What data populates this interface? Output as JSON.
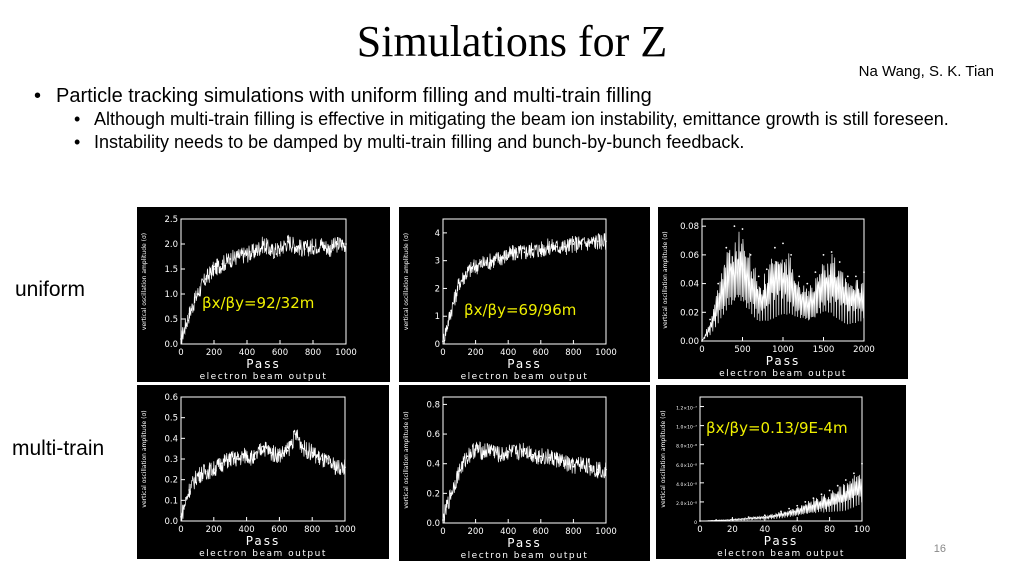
{
  "slide": {
    "title": "Simulations for Z",
    "authors": "Na Wang, S. K. Tian",
    "bullets": {
      "main": "Particle tracking simulations with uniform filling and multi-train filling",
      "sub1": "Although multi-train filling is effective in mitigating the beam ion instability, emittance growth is still foreseen.",
      "sub2": "Instability needs to be damped by multi-train filling and bunch-by-bunch feedback."
    },
    "row_labels": {
      "uniform": "uniform",
      "multi_train": "multi-train"
    },
    "page_number": "16",
    "colors": {
      "annotation": "#f0f000",
      "plot_bg": "#000000",
      "trace": "#ffffff"
    }
  },
  "chart_data": [
    {
      "id": "u1",
      "type": "line",
      "xlabel": "Pass",
      "ylabel": "vertical oscillation amplitude (σ)",
      "caption": "electron beam output",
      "xlim": [
        0,
        1000
      ],
      "ylim": [
        0,
        2.5
      ],
      "xticks": [
        0,
        200,
        400,
        600,
        800,
        1000
      ],
      "xtick_labels": [
        "0",
        "200",
        "400",
        "600",
        "800",
        "1000"
      ],
      "yticks": [
        0,
        0.5,
        1.0,
        1.5,
        2.0,
        2.5
      ],
      "ytick_labels": [
        "0.0",
        "0.5",
        "1.0",
        "1.5",
        "2.0",
        "2.5"
      ],
      "annotation": "βx/βy=92/32m",
      "series": [
        {
          "x": [
            0,
            50,
            100,
            150,
            200,
            250,
            300,
            350,
            400,
            450,
            500,
            550,
            600,
            650,
            700,
            750,
            800,
            850,
            900,
            950,
            1000
          ],
          "y": [
            0.1,
            0.6,
            1.0,
            1.3,
            1.5,
            1.6,
            1.7,
            1.75,
            1.8,
            1.85,
            2.0,
            1.85,
            1.9,
            2.05,
            1.95,
            1.9,
            1.95,
            2.0,
            1.9,
            2.0,
            2.0
          ]
        }
      ]
    },
    {
      "id": "u2",
      "type": "line",
      "xlabel": "Pass",
      "ylabel": "vertical oscillation amplitude (σ)",
      "caption": "electron beam output",
      "xlim": [
        0,
        1000
      ],
      "ylim": [
        0,
        4.5
      ],
      "xticks": [
        0,
        200,
        400,
        600,
        800,
        1000
      ],
      "xtick_labels": [
        "0",
        "200",
        "400",
        "600",
        "800",
        "1000"
      ],
      "yticks": [
        0,
        1,
        2,
        3,
        4
      ],
      "ytick_labels": [
        "0",
        "1",
        "2",
        "3",
        "4"
      ],
      "annotation": "βx/βy=69/96m",
      "series": [
        {
          "x": [
            0,
            50,
            100,
            150,
            200,
            250,
            300,
            350,
            400,
            450,
            500,
            550,
            600,
            650,
            700,
            750,
            800,
            850,
            900,
            950,
            1000
          ],
          "y": [
            0.1,
            1.2,
            2.2,
            2.6,
            2.8,
            2.9,
            3.0,
            3.1,
            3.2,
            3.3,
            3.3,
            3.4,
            3.4,
            3.5,
            3.5,
            3.5,
            3.6,
            3.6,
            3.65,
            3.7,
            3.7
          ]
        }
      ]
    },
    {
      "id": "u3",
      "type": "line",
      "xlabel": "Pass",
      "ylabel": "vertical oscillation amplitude (σ)",
      "caption": "electron beam output",
      "xlim": [
        0,
        2000
      ],
      "ylim": [
        0,
        0.085
      ],
      "xticks": [
        0,
        500,
        1000,
        1500,
        2000
      ],
      "xtick_labels": [
        "0",
        "500",
        "1000",
        "1500",
        "2000"
      ],
      "yticks": [
        0,
        0.02,
        0.04,
        0.06,
        0.08
      ],
      "ytick_labels": [
        "0.00",
        "0.02",
        "0.04",
        "0.06",
        "0.08"
      ],
      "annotation": "",
      "series": [
        {
          "x": [
            0,
            100,
            200,
            300,
            400,
            500,
            600,
            700,
            800,
            900,
            1000,
            1100,
            1200,
            1300,
            1400,
            1500,
            1600,
            1700,
            1800,
            1900,
            2000
          ],
          "y": [
            0.0,
            0.015,
            0.04,
            0.065,
            0.08,
            0.078,
            0.06,
            0.045,
            0.05,
            0.065,
            0.068,
            0.06,
            0.045,
            0.04,
            0.048,
            0.06,
            0.062,
            0.055,
            0.045,
            0.045,
            0.048
          ]
        }
      ]
    },
    {
      "id": "m1",
      "type": "line",
      "xlabel": "Pass",
      "ylabel": "vertical oscillation amplitude (σ)",
      "caption": "electron beam output",
      "xlim": [
        0,
        1000
      ],
      "ylim": [
        0,
        0.6
      ],
      "xticks": [
        0,
        200,
        400,
        600,
        800,
        1000
      ],
      "xtick_labels": [
        "0",
        "200",
        "400",
        "600",
        "800",
        "1000"
      ],
      "yticks": [
        0,
        0.1,
        0.2,
        0.3,
        0.4,
        0.5,
        0.6
      ],
      "ytick_labels": [
        "0.0",
        "0.1",
        "0.2",
        "0.3",
        "0.4",
        "0.5",
        "0.6"
      ],
      "annotation": "",
      "series": [
        {
          "x": [
            0,
            50,
            100,
            150,
            200,
            250,
            300,
            350,
            400,
            450,
            500,
            550,
            600,
            650,
            700,
            750,
            800,
            850,
            900,
            950,
            1000
          ],
          "y": [
            0.02,
            0.15,
            0.22,
            0.24,
            0.25,
            0.28,
            0.3,
            0.3,
            0.32,
            0.3,
            0.36,
            0.33,
            0.32,
            0.34,
            0.42,
            0.35,
            0.33,
            0.3,
            0.28,
            0.26,
            0.26
          ]
        }
      ]
    },
    {
      "id": "m2",
      "type": "line",
      "xlabel": "Pass",
      "ylabel": "vertical oscillation amplitude (σ)",
      "caption": "electron beam output",
      "xlim": [
        0,
        1000
      ],
      "ylim": [
        0,
        0.85
      ],
      "xticks": [
        0,
        200,
        400,
        600,
        800,
        1000
      ],
      "xtick_labels": [
        "0",
        "200",
        "400",
        "600",
        "800",
        "1000"
      ],
      "yticks": [
        0,
        0.2,
        0.4,
        0.6,
        0.8
      ],
      "ytick_labels": [
        "0.0",
        "0.2",
        "0.4",
        "0.6",
        "0.8"
      ],
      "annotation": "",
      "series": [
        {
          "x": [
            0,
            50,
            100,
            150,
            200,
            250,
            300,
            350,
            400,
            450,
            500,
            550,
            600,
            650,
            700,
            750,
            800,
            850,
            900,
            950,
            1000
          ],
          "y": [
            0.02,
            0.2,
            0.35,
            0.45,
            0.5,
            0.48,
            0.5,
            0.45,
            0.48,
            0.47,
            0.5,
            0.46,
            0.45,
            0.44,
            0.43,
            0.4,
            0.38,
            0.4,
            0.38,
            0.36,
            0.36
          ]
        }
      ]
    },
    {
      "id": "m3",
      "type": "line",
      "xlabel": "Pass",
      "ylabel": "vertical oscillation amplitude (σ)",
      "caption": "electron beam output",
      "xlim": [
        0,
        100
      ],
      "ylim": [
        0,
        1.3e-07
      ],
      "xticks": [
        0,
        20,
        40,
        60,
        80,
        100
      ],
      "xtick_labels": [
        "0",
        "20",
        "40",
        "60",
        "80",
        "100"
      ],
      "yticks": [
        0,
        2e-08,
        4e-08,
        6e-08,
        8e-08,
        1e-07,
        1.2e-07
      ],
      "ytick_labels": [
        "0",
        "2.0×10⁻⁸",
        "4.0×10⁻⁸",
        "6.0×10⁻⁸",
        "8.0×10⁻⁸",
        "1.0×10⁻⁷",
        "1.2×10⁻⁷"
      ],
      "annotation": "βx/βy=0.13/9E-4m",
      "series": [
        {
          "x": [
            0,
            10,
            20,
            30,
            40,
            50,
            55,
            60,
            65,
            70,
            75,
            80,
            85,
            90,
            95,
            100
          ],
          "y": [
            0,
            1e-09,
            2e-09,
            4e-09,
            6e-09,
            1e-08,
            1.3e-08,
            1.6e-08,
            2e-08,
            2.4e-08,
            2.8e-08,
            3.2e-08,
            3.7e-08,
            4.3e-08,
            5e-08,
            6e-08
          ]
        }
      ]
    }
  ]
}
